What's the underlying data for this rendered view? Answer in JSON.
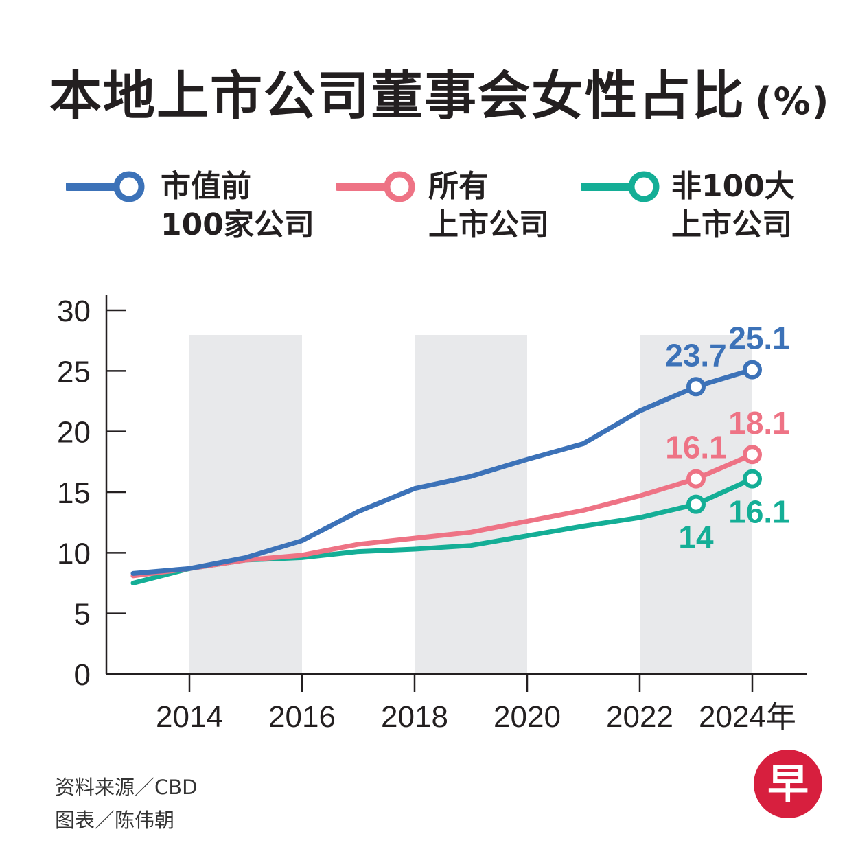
{
  "title": "本地上市公司董事会女性占比",
  "title_unit": "(%)",
  "legend": [
    {
      "line1": "市值前",
      "line2": "100家公司",
      "color": "#3c72b8"
    },
    {
      "line1": "所有",
      "line2": "上市公司",
      "color": "#ee7385"
    },
    {
      "line1": "非100大",
      "line2": "上市公司",
      "color": "#14ae96"
    }
  ],
  "footer": {
    "source": "资料来源／CBD",
    "credit": "图表／陈伟朝"
  },
  "logo_char": "早",
  "chart_data": {
    "type": "line",
    "x": [
      2013,
      2014,
      2015,
      2016,
      2017,
      2018,
      2019,
      2020,
      2021,
      2022,
      2023,
      2024
    ],
    "xticks": [
      2014,
      2016,
      2018,
      2020,
      2022,
      2024
    ],
    "xtick_labels": [
      "2014",
      "2016",
      "2018",
      "2020",
      "2022",
      "2024年"
    ],
    "yticks": [
      0,
      5,
      10,
      15,
      20,
      25,
      30
    ],
    "ylim": [
      0,
      30
    ],
    "shaded_bands": [
      [
        2014,
        2016
      ],
      [
        2018,
        2020
      ],
      [
        2022,
        2024
      ]
    ],
    "series": [
      {
        "name": "市值前100家公司",
        "color": "#3c72b8",
        "values": [
          8.3,
          8.7,
          9.6,
          11.0,
          13.4,
          15.3,
          16.3,
          17.7,
          19.0,
          21.7,
          23.7,
          25.1
        ],
        "labels": [
          {
            "x": 2023,
            "text": "23.7",
            "pos": "above"
          },
          {
            "x": 2024,
            "text": "25.1",
            "pos": "above"
          }
        ]
      },
      {
        "name": "所有上市公司",
        "color": "#ee7385",
        "values": [
          8.1,
          8.7,
          9.4,
          9.8,
          10.7,
          11.2,
          11.7,
          12.6,
          13.5,
          14.7,
          16.1,
          18.1
        ],
        "labels": [
          {
            "x": 2023,
            "text": "16.1",
            "pos": "above"
          },
          {
            "x": 2024,
            "text": "18.1",
            "pos": "above"
          }
        ]
      },
      {
        "name": "非100大上市公司",
        "color": "#14ae96",
        "values": [
          7.5,
          8.7,
          9.4,
          9.6,
          10.1,
          10.3,
          10.6,
          11.4,
          12.2,
          12.9,
          14.0,
          16.1
        ],
        "labels": [
          {
            "x": 2023,
            "text": "14",
            "pos": "below"
          },
          {
            "x": 2024,
            "text": "16.1",
            "pos": "below"
          }
        ]
      }
    ]
  }
}
